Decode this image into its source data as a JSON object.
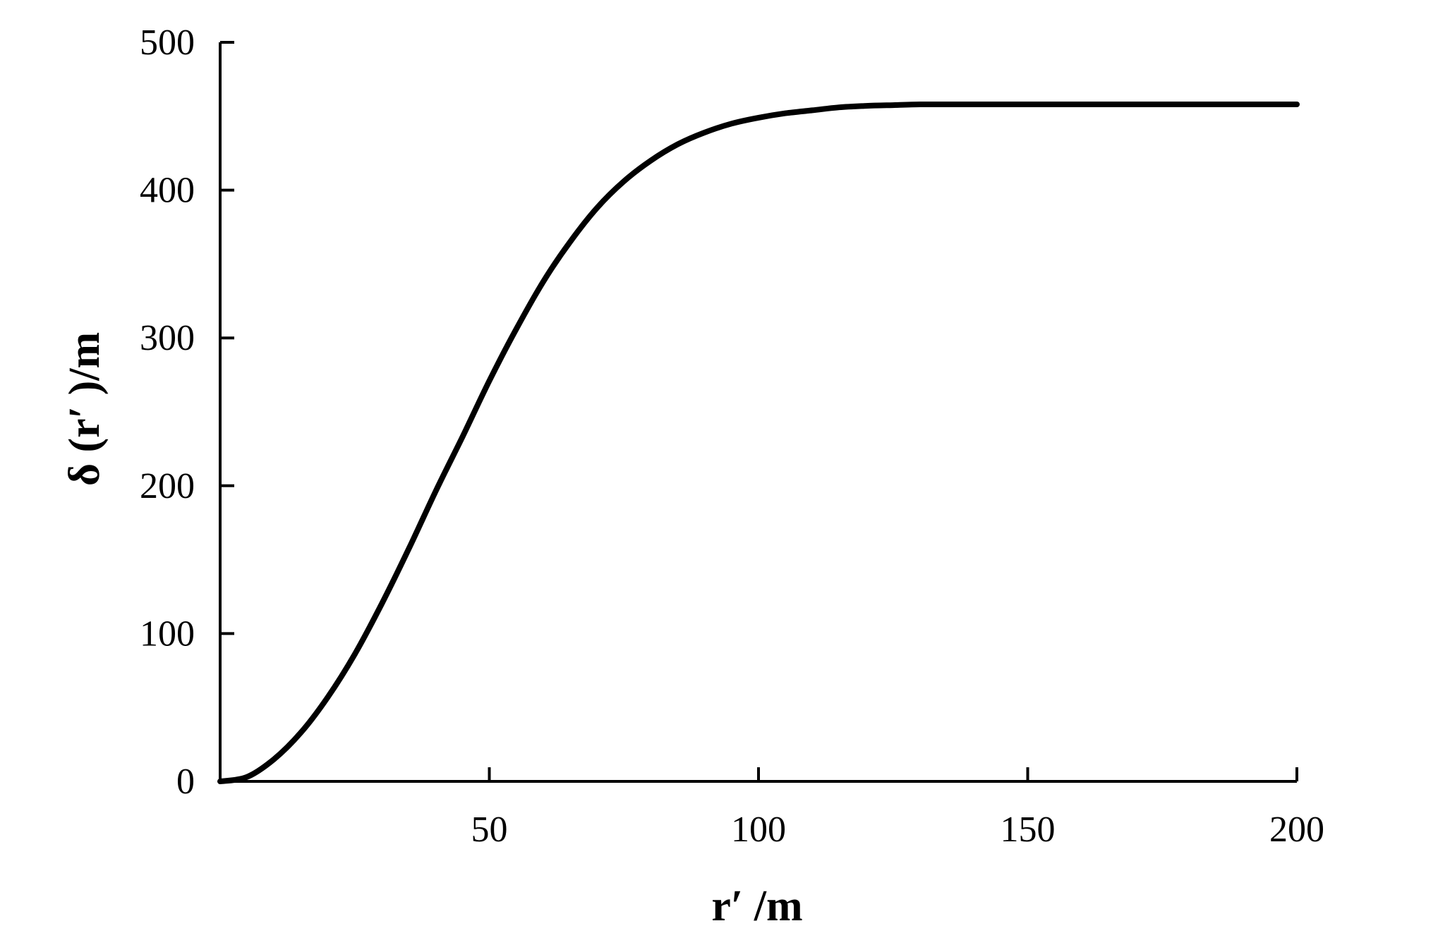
{
  "chart_data": {
    "type": "line",
    "title": "",
    "xlabel": "r′ /m",
    "ylabel": "δ (r′ )/m",
    "xlim": [
      0,
      200
    ],
    "ylim": [
      0,
      500
    ],
    "x_ticks": [
      50,
      100,
      150,
      200
    ],
    "x_tick_labels": [
      "50",
      "100",
      "150",
      "200"
    ],
    "y_ticks": [
      0,
      100,
      200,
      300,
      400,
      500
    ],
    "y_tick_labels": [
      "0",
      "100",
      "200",
      "300",
      "400",
      "500"
    ],
    "grid": false,
    "legend": "none",
    "colors": {
      "line": "#000000",
      "axes": "#000000",
      "background": "#ffffff"
    },
    "series": [
      {
        "x": [
          0,
          5,
          10,
          15,
          20,
          25,
          30,
          35,
          40,
          45,
          50,
          55,
          60,
          65,
          70,
          75,
          80,
          85,
          90,
          95,
          100,
          105,
          110,
          115,
          120,
          125,
          130,
          135,
          140,
          150,
          160,
          170,
          180,
          190,
          200
        ],
        "values": [
          0,
          3,
          15,
          33,
          57,
          86,
          120,
          157,
          196,
          233,
          271,
          306,
          338,
          365,
          388,
          406,
          420,
          431,
          439,
          445,
          449,
          452,
          454,
          456,
          457,
          457.5,
          458,
          458,
          458,
          458,
          458,
          458,
          458,
          458,
          458
        ]
      }
    ]
  }
}
